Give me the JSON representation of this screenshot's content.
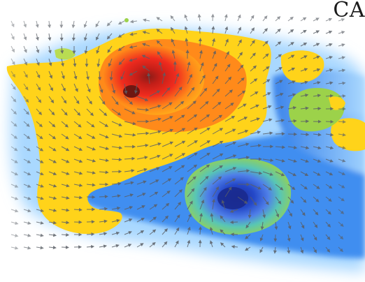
{
  "image": {
    "description_free": true,
    "corner_text": "CA",
    "colors": {
      "background": "#ffffff",
      "ocean_light": "#a9d8ff",
      "ocean_mid": "#3f8ef0",
      "ocean_deep": "#1f63c9",
      "land_yellow": "#ffd31a",
      "land_orange": "#ff8a1a",
      "land_red": "#ef2b1e",
      "core_dark_red": "#8a1d18",
      "green_patch": "#9cd24a",
      "cyan_ring": "#58c6b5",
      "low_core_blue": "#1d2e9c",
      "arrow": "#5a5f66"
    },
    "icons": [
      "wind-vector-arrow"
    ]
  }
}
